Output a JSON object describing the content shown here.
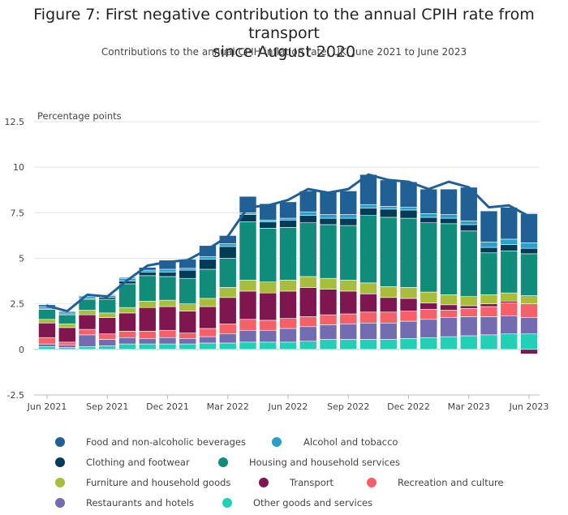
{
  "title_line1": "Figure 7: First negative contribution to the annual CPIH rate from transport",
  "title_line2": "since August 2020",
  "subtitle": "Contributions to the annual CPIH inflation rate, UK, June 2021 to June 2023",
  "chart_data": {
    "type": "bar",
    "stacked": true,
    "ylabel": "Percentage points",
    "ylim": [
      -2.5,
      12.5
    ],
    "yticks": [
      -2.5,
      0,
      2.5,
      5,
      7.5,
      10,
      12.5
    ],
    "ytick_labels": [
      "-2.5",
      "0",
      "2.5",
      "5",
      "7.5",
      "10",
      "12.5"
    ],
    "grid": true,
    "legend_position": "bottom",
    "categories": [
      "Jun 2021",
      "Jul 2021",
      "Aug 2021",
      "Sep 2021",
      "Oct 2021",
      "Nov 2021",
      "Dec 2021",
      "Jan 2022",
      "Feb 2022",
      "Mar 2022",
      "Apr 2022",
      "May 2022",
      "Jun 2022",
      "Jul 2022",
      "Aug 2022",
      "Sep 2022",
      "Oct 2022",
      "Nov 2022",
      "Dec 2022",
      "Jan 2023",
      "Feb 2023",
      "Mar 2023",
      "Apr 2023",
      "May 2023",
      "Jun 2023"
    ],
    "xtick_labels": [
      "Jun 2021",
      "Sep 2021",
      "Dec 2021",
      "Mar 2022",
      "Jun 2022",
      "Sep 2022",
      "Dec 2022",
      "Mar 2023",
      "Jun 2023"
    ],
    "xtick_indices": [
      0,
      3,
      6,
      9,
      12,
      15,
      18,
      21,
      24
    ],
    "series": [
      {
        "name": "Other goods and services",
        "color": "#22d0b6",
        "values": [
          0.15,
          0.1,
          0.15,
          0.2,
          0.3,
          0.3,
          0.3,
          0.3,
          0.35,
          0.35,
          0.4,
          0.4,
          0.4,
          0.45,
          0.55,
          0.55,
          0.55,
          0.55,
          0.6,
          0.65,
          0.7,
          0.75,
          0.8,
          0.85,
          0.85
        ]
      },
      {
        "name": "Restaurants and hotels",
        "color": "#746cb1",
        "values": [
          0.15,
          0.15,
          0.65,
          0.35,
          0.35,
          0.3,
          0.35,
          0.3,
          0.35,
          0.5,
          0.65,
          0.65,
          0.75,
          0.8,
          0.8,
          0.85,
          0.9,
          0.9,
          0.95,
          1.0,
          1.05,
          1.05,
          1.0,
          1.0,
          0.9
        ]
      },
      {
        "name": "Recreation and culture",
        "color": "#f66068",
        "values": [
          0.35,
          0.15,
          0.3,
          0.3,
          0.35,
          0.4,
          0.4,
          0.3,
          0.45,
          0.55,
          0.6,
          0.55,
          0.55,
          0.55,
          0.55,
          0.55,
          0.6,
          0.6,
          0.55,
          0.55,
          0.4,
          0.45,
          0.55,
          0.7,
          0.75
        ]
      },
      {
        "name": "Transport",
        "color": "#801650",
        "values": [
          0.8,
          0.8,
          0.8,
          0.9,
          1.0,
          1.3,
          1.3,
          1.2,
          1.2,
          1.45,
          1.55,
          1.5,
          1.5,
          1.6,
          1.4,
          1.25,
          1.0,
          0.8,
          0.7,
          0.35,
          0.3,
          0.15,
          0.15,
          0.1,
          -0.25
        ]
      },
      {
        "name": "Furniture and household goods",
        "color": "#a8bd3a",
        "values": [
          0.2,
          0.2,
          0.25,
          0.25,
          0.3,
          0.35,
          0.35,
          0.4,
          0.45,
          0.55,
          0.6,
          0.6,
          0.6,
          0.6,
          0.6,
          0.6,
          0.6,
          0.6,
          0.6,
          0.6,
          0.55,
          0.5,
          0.5,
          0.45,
          0.45
        ]
      },
      {
        "name": "Housing and household services",
        "color": "#118c7b",
        "values": [
          0.55,
          0.5,
          0.6,
          0.75,
          1.3,
          1.4,
          1.3,
          1.4,
          1.6,
          1.6,
          3.2,
          2.95,
          2.9,
          2.95,
          2.95,
          3.0,
          3.7,
          3.8,
          3.8,
          3.8,
          3.9,
          3.6,
          2.3,
          2.3,
          2.3
        ]
      },
      {
        "name": "Clothing and footwear",
        "color": "#003c57",
        "values": [
          0.05,
          0.05,
          0.05,
          0.1,
          0.15,
          0.2,
          0.25,
          0.45,
          0.55,
          0.65,
          0.4,
          0.35,
          0.4,
          0.4,
          0.35,
          0.4,
          0.4,
          0.45,
          0.45,
          0.3,
          0.3,
          0.35,
          0.3,
          0.35,
          0.3
        ]
      },
      {
        "name": "Alcohol and tobacco",
        "color": "#27a0cc",
        "values": [
          0.1,
          0.1,
          0.1,
          0.1,
          0.15,
          0.1,
          0.15,
          0.1,
          0.15,
          0.15,
          0.1,
          0.1,
          0.1,
          0.2,
          0.2,
          0.2,
          0.2,
          0.15,
          0.15,
          0.2,
          0.2,
          0.2,
          0.3,
          0.3,
          0.3
        ]
      },
      {
        "name": "Food and non-alcoholic beverages",
        "color": "#206095",
        "values": [
          0.1,
          0.05,
          0.05,
          0.05,
          0.05,
          0.15,
          0.5,
          0.5,
          0.6,
          0.45,
          0.9,
          0.9,
          0.9,
          1.15,
          1.25,
          1.3,
          1.65,
          1.45,
          1.4,
          1.35,
          1.4,
          1.85,
          1.7,
          1.75,
          1.6
        ]
      }
    ],
    "line": {
      "name": "CPIH",
      "color": "#206095",
      "values": [
        2.4,
        2.1,
        3.0,
        2.9,
        3.8,
        4.6,
        4.8,
        4.9,
        5.5,
        6.2,
        7.8,
        7.9,
        8.2,
        8.8,
        8.6,
        8.8,
        9.6,
        9.3,
        9.2,
        8.8,
        9.2,
        8.9,
        7.8,
        7.9,
        7.3
      ]
    },
    "legend_order": [
      "Food and non-alcoholic beverages",
      "Alcohol and tobacco",
      "Clothing and footwear",
      "Housing and household services",
      "Furniture and household goods",
      "Transport",
      "Recreation and culture",
      "Restaurants and hotels",
      "Other goods and services"
    ]
  }
}
